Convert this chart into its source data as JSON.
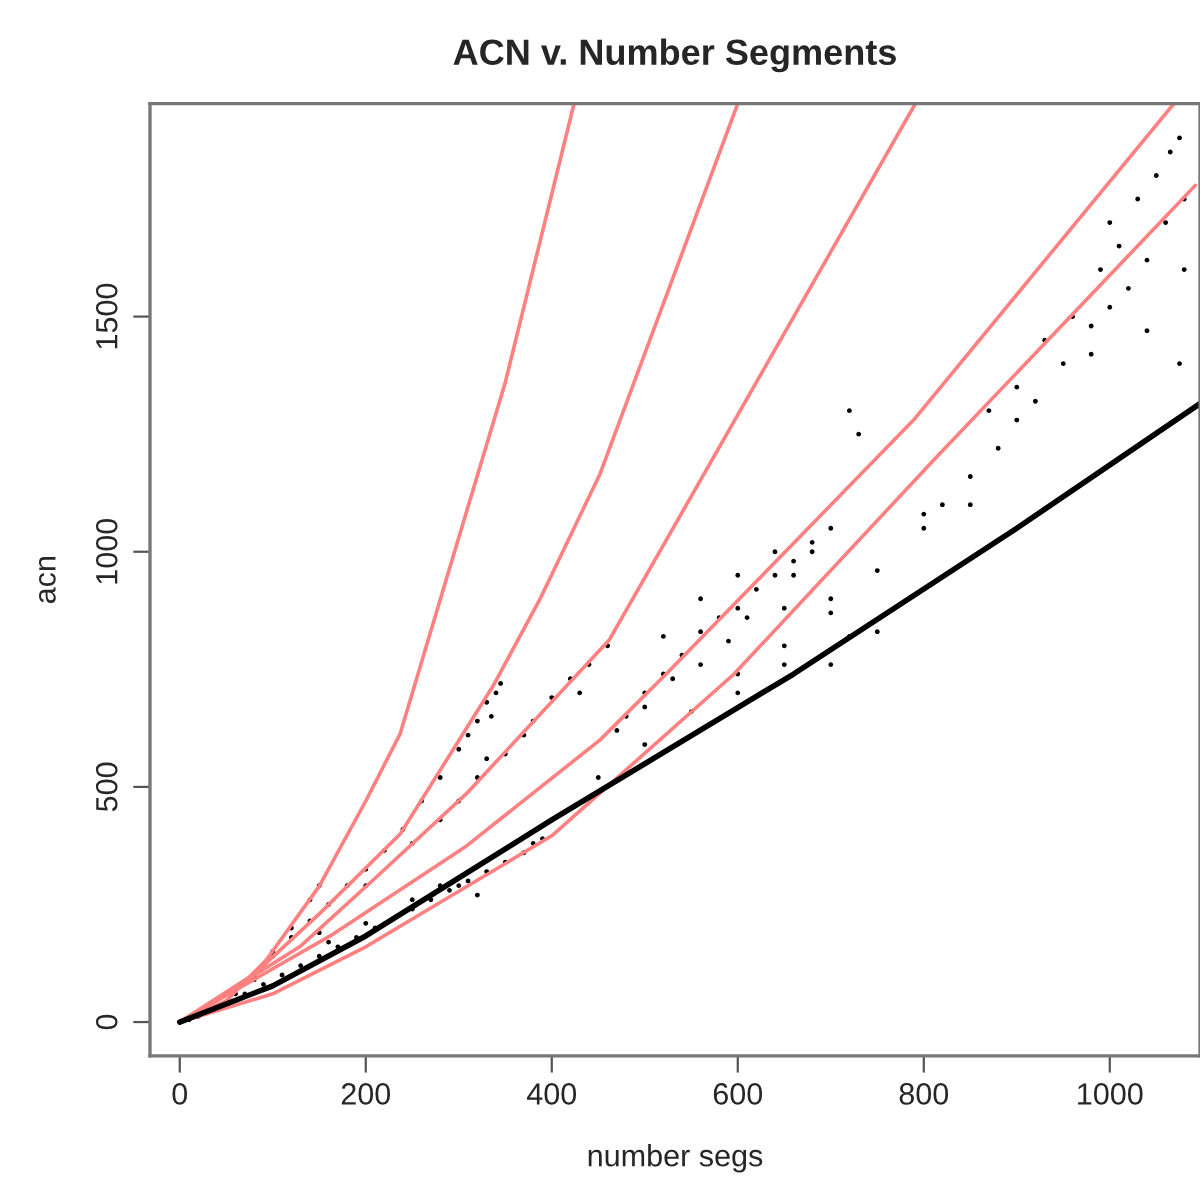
{
  "chart_data": {
    "type": "scatter",
    "title": "ACN v. Number Segments",
    "xlabel": "number segs",
    "ylabel": "acn",
    "xlim": [
      -32,
      1097
    ],
    "ylim": [
      -72,
      1953
    ],
    "xticks": [
      0,
      200,
      400,
      600,
      800,
      1000
    ],
    "yticks": [
      0,
      500,
      1000,
      1500
    ],
    "grid": false,
    "legend": false,
    "series": [
      {
        "color": "#000000",
        "x": [
          10,
          20,
          70,
          90,
          110,
          130,
          150,
          170,
          190,
          210,
          250,
          270,
          290,
          310,
          330,
          350,
          370,
          390,
          250,
          300,
          320,
          280,
          380,
          200,
          160,
          60,
          80,
          100,
          120,
          140,
          150,
          80,
          100,
          120,
          140,
          160,
          180,
          200,
          220,
          240,
          260,
          280,
          300,
          310,
          320,
          330,
          340,
          345,
          335,
          150,
          200,
          250,
          280,
          300,
          320,
          350,
          380,
          400,
          420,
          440,
          460,
          330,
          370,
          430,
          480,
          500,
          520,
          540,
          560,
          580,
          600,
          620,
          640,
          660,
          680,
          700,
          520,
          560,
          600,
          640,
          700,
          680,
          650,
          720,
          730,
          560,
          590,
          610,
          660,
          500,
          470,
          530,
          450,
          500,
          550,
          600,
          650,
          700,
          750,
          800,
          820,
          850,
          880,
          900,
          920,
          950,
          980,
          1000,
          1020,
          1040,
          1060,
          1080,
          1050,
          1065,
          1075,
          1030,
          1010,
          990,
          960,
          930,
          900,
          870,
          980,
          1040,
          1075,
          1000,
          1080,
          700,
          750,
          800,
          850,
          600,
          650,
          720
        ],
        "values": [
          5,
          12,
          60,
          80,
          100,
          120,
          140,
          160,
          180,
          200,
          240,
          260,
          280,
          300,
          320,
          340,
          360,
          390,
          260,
          290,
          270,
          290,
          380,
          210,
          170,
          60,
          90,
          150,
          200,
          260,
          290,
          100,
          140,
          180,
          215,
          250,
          290,
          325,
          365,
          410,
          470,
          520,
          580,
          610,
          640,
          680,
          700,
          720,
          650,
          190,
          290,
          380,
          430,
          470,
          520,
          570,
          640,
          690,
          730,
          760,
          800,
          560,
          610,
          700,
          650,
          700,
          740,
          780,
          830,
          860,
          880,
          920,
          950,
          980,
          1000,
          1050,
          820,
          900,
          950,
          1000,
          900,
          1020,
          880,
          1300,
          1250,
          760,
          810,
          860,
          950,
          670,
          620,
          730,
          520,
          590,
          660,
          740,
          800,
          870,
          960,
          1080,
          1100,
          1160,
          1220,
          1280,
          1320,
          1400,
          1480,
          1520,
          1560,
          1620,
          1700,
          1750,
          1800,
          1850,
          1880,
          1750,
          1650,
          1600,
          1500,
          1450,
          1350,
          1300,
          1420,
          1470,
          1400,
          1700,
          1600,
          760,
          830,
          1050,
          1100,
          700,
          760,
          820
        ]
      },
      {
        "type": "line",
        "color": "#ff8080",
        "x": [
          0,
          50,
          93,
          150,
          200,
          237,
          280,
          350,
          424
        ],
        "values": [
          0,
          45,
          132,
          289,
          470,
          613,
          898,
          1360,
          1953
        ]
      },
      {
        "type": "line",
        "color": "#ff8080",
        "x": [
          0,
          80,
          150,
          237,
          337,
          387,
          452,
          600
        ],
        "values": [
          0,
          102,
          230,
          400,
          715,
          898,
          1166,
          1953
        ]
      },
      {
        "type": "line",
        "color": "#ff8080",
        "x": [
          0,
          129,
          208,
          308,
          462,
          791
        ],
        "values": [
          0,
          160,
          302,
          485,
          813,
          1953
        ]
      },
      {
        "type": "line",
        "color": "#ff8080",
        "x": [
          0,
          165,
          308,
          452,
          523,
          789,
          1069
        ],
        "values": [
          0,
          187,
          374,
          600,
          740,
          1280,
          1953
        ]
      },
      {
        "type": "line",
        "color": "#ff8080",
        "x": [
          0,
          100,
          200,
          400,
          596,
          813,
          1092
        ],
        "values": [
          0,
          60,
          160,
          396,
          740,
          1200,
          1779
        ]
      },
      {
        "type": "line",
        "color": "#000000",
        "x": [
          0,
          100,
          200,
          400,
          660,
          900,
          1097
        ],
        "values": [
          0,
          77,
          183,
          430,
          740,
          1050,
          1315
        ]
      }
    ]
  }
}
